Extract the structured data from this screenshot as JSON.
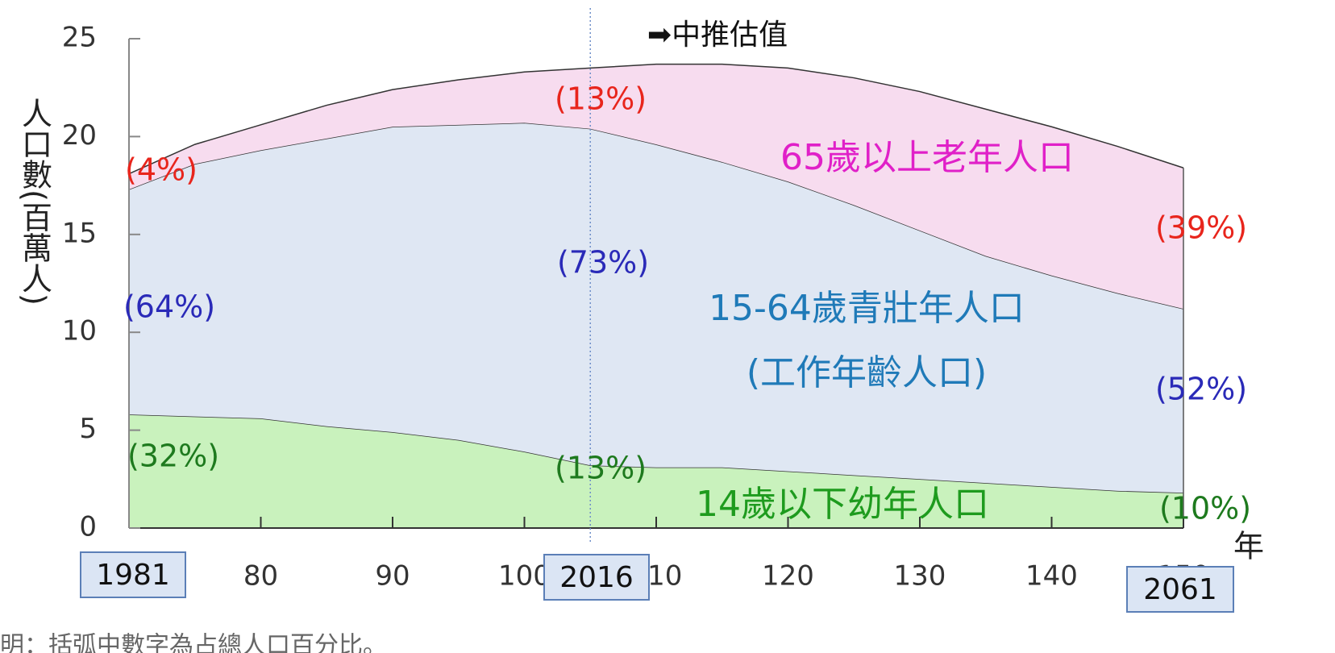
{
  "chart_data": {
    "type": "stacked_area",
    "y_label": "人口數(百萬人)",
    "x_unit": "年",
    "x": [
      70,
      75,
      80,
      85,
      90,
      95,
      100,
      105,
      110,
      115,
      120,
      125,
      130,
      135,
      140,
      145,
      150
    ],
    "series": [
      {
        "name": "14歲以下幼年人口",
        "color": "#c9f2bd",
        "values": [
          5.8,
          5.7,
          5.6,
          5.2,
          4.9,
          4.5,
          3.9,
          3.2,
          3.1,
          3.1,
          2.9,
          2.7,
          2.5,
          2.3,
          2.1,
          1.9,
          1.8
        ]
      },
      {
        "name": "15-64歲青壯年人口",
        "color": "#dfe7f3",
        "values": [
          11.5,
          12.9,
          13.7,
          14.7,
          15.6,
          16.1,
          16.8,
          17.2,
          16.5,
          15.6,
          14.8,
          13.8,
          12.7,
          11.6,
          10.8,
          10.1,
          9.4
        ]
      },
      {
        "name": "65歲以上老年人口",
        "color": "#f7dcef",
        "values": [
          0.8,
          1.0,
          1.3,
          1.7,
          1.9,
          2.3,
          2.6,
          3.1,
          4.1,
          5.0,
          5.8,
          6.5,
          7.1,
          7.5,
          7.6,
          7.5,
          7.2
        ]
      }
    ],
    "xlim": [
      70,
      150
    ],
    "xticks": [
      80,
      90,
      100,
      110,
      120,
      130,
      140,
      150
    ],
    "ylim": [
      0,
      25
    ],
    "yticks": [
      0,
      5,
      10,
      15,
      20,
      25
    ],
    "projection_start": 105,
    "projection_label": "➡中推估值",
    "annotations": [
      {
        "text": "(4%)",
        "color": "#e8251c"
      },
      {
        "text": "(64%)",
        "color": "#2a2ab8"
      },
      {
        "text": "(32%)",
        "color": "#1e7a1e"
      },
      {
        "text": "(13%)",
        "color": "#e8251c"
      },
      {
        "text": "(73%)",
        "color": "#2a2ab8"
      },
      {
        "text": "(13%)",
        "color": "#1e7a1e"
      },
      {
        "text": "(39%)",
        "color": "#e8251c"
      },
      {
        "text": "(52%)",
        "color": "#2a2ab8"
      },
      {
        "text": "(10%)",
        "color": "#1e7a1e"
      },
      {
        "text": "65歲以上老年人口",
        "color": "#e020c8"
      },
      {
        "text": "15-64歲青壯年人口",
        "color": "#1f7ab8"
      },
      {
        "text": "(工作年齡人口)",
        "color": "#1f7ab8"
      },
      {
        "text": "14歲以下幼年人口",
        "color": "#1e9b1e"
      }
    ],
    "year_labels": [
      "1981",
      "2016",
      "2061"
    ],
    "footnote": "明：括弧中數字為占總人口百分比。"
  }
}
